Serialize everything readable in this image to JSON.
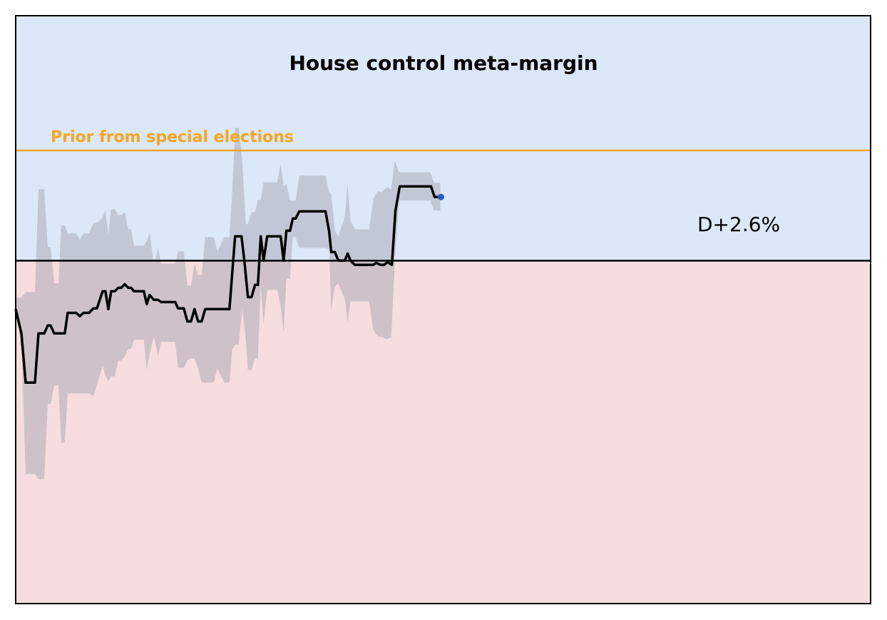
{
  "chart_data": {
    "type": "line",
    "title": "House control meta-margin",
    "xlim": [
      0,
      120
    ],
    "ylim": [
      -14,
      10
    ],
    "above_color": "#dce7f7",
    "below_color": "#f5dde0",
    "baseline": 0,
    "prior": {
      "label": "Prior from special elections",
      "value": 4.5,
      "color": "#f5a623"
    },
    "annotation": "D+2.6%",
    "band": {
      "color": "#a0a0a8",
      "x": [
        0,
        0.8,
        1.4,
        2.7,
        3.2,
        4,
        4.5,
        4.9,
        5.4,
        6,
        6.4,
        6.9,
        7.3,
        8.5,
        9,
        9.5,
        10.3,
        10.9,
        11.4,
        12.2,
        12.6,
        13,
        13.4,
        13.9,
        14.4,
        14.8,
        15.3,
        15.8,
        16.2,
        16.6,
        18,
        18.4,
        18.8,
        19.4,
        20,
        20.4,
        22.4,
        22.8,
        23.6,
        24.1,
        24.6,
        25.1,
        25.6,
        26.1,
        26.6,
        27.8,
        28.3,
        29.3,
        30,
        30.4,
        30.8,
        31.3,
        31.8,
        32.3,
        32.6,
        33.1,
        33.6,
        34,
        34.4,
        34.8,
        35.3,
        36.7,
        37.2,
        37.6,
        38,
        38.5,
        38.9,
        39.3,
        39.8,
        43.5,
        44,
        44.3,
        44.8,
        45.3,
        46.2,
        46.6,
        47,
        47.6,
        49.6,
        50.2,
        50.8,
        51.4,
        52.1,
        52.7,
        53.2,
        53.8,
        58.2,
        58.7,
        59.6
      ],
      "upper": [
        -1.51,
        -1.51,
        -1.28,
        -1.28,
        2.91,
        2.91,
        0.55,
        0.55,
        -0.93,
        -0.93,
        1.43,
        1.43,
        1.11,
        1.11,
        0.87,
        1.11,
        1.11,
        1.54,
        1.54,
        1.75,
        2.07,
        1.05,
        2.1,
        2.1,
        1.86,
        1.86,
        1.98,
        1.28,
        1.28,
        0.61,
        0.61,
        0.82,
        1.11,
        -0.12,
        0.47,
        -0.12,
        -0.12,
        0.38,
        0.38,
        -1.02,
        -1.02,
        -0.12,
        -0.58,
        -0.58,
        0.96,
        0.96,
        0.38,
        0.96,
        0.96,
        2.8,
        5.42,
        5.42,
        4.11,
        1.49,
        1.49,
        1.98,
        1.98,
        2.48,
        2.48,
        3.2,
        3.2,
        3.2,
        3.96,
        3.03,
        3.15,
        2.45,
        2.45,
        2.45,
        3.47,
        3.47,
        2.8,
        2.71,
        1.22,
        0.99,
        1.78,
        3.09,
        1.63,
        1.28,
        1.28,
        2.51,
        2.85,
        2.8,
        3.0,
        2.91,
        4.08,
        3.61,
        3.61,
        3.18,
        3.18
      ],
      "lower": [
        -2.16,
        -3.32,
        -8.71,
        -8.71,
        -8.91,
        -8.91,
        -5.85,
        -5.85,
        -5.1,
        -5.1,
        -7.43,
        -7.43,
        -5.42,
        -5.42,
        -5.42,
        -5.42,
        -5.42,
        -5.53,
        -5.07,
        -4.31,
        -4.69,
        -4.92,
        -4.72,
        -4.72,
        -4.08,
        -4.08,
        -3.9,
        -3.61,
        -3.61,
        -3.23,
        -3.23,
        -4.46,
        -3.82,
        -3.09,
        -3.9,
        -3.32,
        -3.32,
        -4.37,
        -4.37,
        -4.05,
        -3.99,
        -3.99,
        -4.4,
        -4.98,
        -4.98,
        -4.98,
        -4.4,
        -4.98,
        -4.98,
        -3.61,
        -3.44,
        -3.44,
        -1.98,
        -3.18,
        -4.46,
        -4.46,
        -3.99,
        -3.99,
        -0.99,
        -2.59,
        -1.19,
        -1.19,
        -1.86,
        -2.94,
        -0.73,
        -0.73,
        0.96,
        0.96,
        0.52,
        0.52,
        0.47,
        -2.04,
        -1.05,
        -0.93,
        -1.57,
        -2.51,
        -1.66,
        -1.66,
        -1.66,
        -2.83,
        -3.09,
        -3.12,
        -3.2,
        -3.12,
        -0.12,
        2.45,
        2.45,
        2.04,
        2.04
      ]
    },
    "median": {
      "color": "#000000",
      "end_color": "#1f5fc8",
      "x": [
        0,
        0.8,
        1.4,
        2.7,
        3.2,
        4,
        4.5,
        4.9,
        5.4,
        6.9,
        7.3,
        8.5,
        9,
        9.5,
        10.3,
        10.9,
        11.4,
        12.2,
        12.6,
        13,
        13.4,
        13.9,
        14.4,
        14.8,
        15.3,
        15.8,
        16.2,
        16.6,
        18,
        18.4,
        18.8,
        19.4,
        20,
        20.4,
        22.4,
        22.8,
        23.6,
        24.1,
        24.6,
        25.1,
        25.6,
        26.1,
        26.6,
        30,
        30.8,
        31.7,
        32.1,
        32.6,
        33.1,
        33.6,
        34,
        34.4,
        34.8,
        35.3,
        37.2,
        37.6,
        38,
        38.5,
        38.9,
        39.3,
        39.8,
        43.5,
        44,
        44.3,
        44.8,
        45.3,
        46.2,
        46.6,
        47,
        47.6,
        50.2,
        50.6,
        51.2,
        51.7,
        52.2,
        52.8,
        53.3,
        53.9,
        58.3,
        58.8,
        59.7
      ],
      "values": [
        -1.98,
        -2.97,
        -4.98,
        -4.98,
        -2.97,
        -2.97,
        -2.65,
        -2.65,
        -2.97,
        -2.97,
        -2.13,
        -2.13,
        -2.27,
        -2.13,
        -2.13,
        -1.95,
        -1.95,
        -1.25,
        -1.25,
        -1.98,
        -1.25,
        -1.25,
        -1.11,
        -1.11,
        -0.96,
        -1.11,
        -1.11,
        -1.25,
        -1.25,
        -1.78,
        -1.4,
        -1.6,
        -1.6,
        -1.69,
        -1.69,
        -1.95,
        -1.95,
        -2.48,
        -2.48,
        -1.98,
        -2.48,
        -2.48,
        -1.98,
        -1.98,
        0.99,
        0.99,
        0,
        -1.49,
        -1.49,
        -0.99,
        -0.99,
        0.99,
        0,
        0.99,
        0.99,
        0,
        1.22,
        1.22,
        1.72,
        1.72,
        2.01,
        2.01,
        1.19,
        0.35,
        0.35,
        0,
        0,
        0.29,
        0,
        -0.17,
        -0.17,
        -0.09,
        -0.17,
        -0.17,
        -0.06,
        -0.17,
        2.04,
        3.03,
        3.03,
        2.6,
        2.6
      ]
    }
  }
}
